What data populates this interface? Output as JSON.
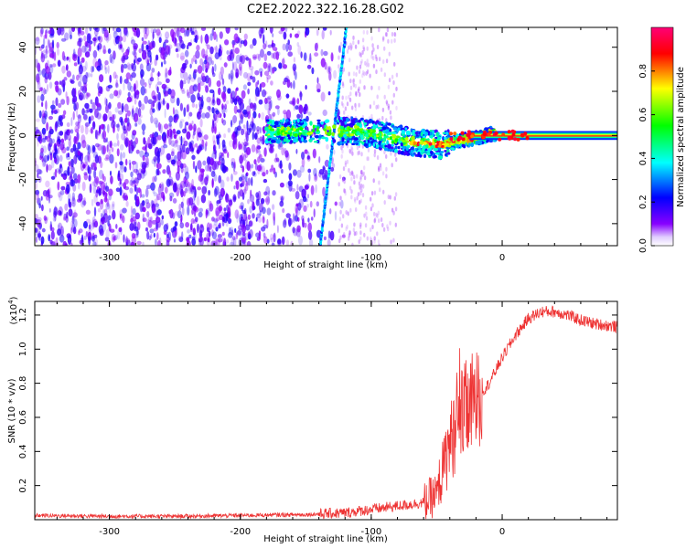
{
  "title": "C2E2.2022.322.16.28.G02",
  "colors": {
    "snr_line": "#ee3333",
    "frame": "#000000"
  },
  "chart_data": [
    {
      "type": "heatmap",
      "xlabel": "Height of straight line (km)",
      "ylabel": "Frequency (Hz)",
      "xlim": [
        -357,
        88
      ],
      "ylim": [
        -50,
        49
      ],
      "x_ticks": [
        -300,
        -200,
        -100,
        0
      ],
      "y_ticks": [
        -40,
        -20,
        0,
        20,
        40
      ],
      "colorbar": {
        "label": "Normalized spectral amplitude",
        "range": [
          0,
          1
        ],
        "ticks": [
          0.0,
          0.2,
          0.4,
          0.6,
          0.8
        ],
        "colormap": [
          "#ffffff",
          "#8800ff",
          "#0000ff",
          "#00ffff",
          "#00ff00",
          "#ffff00",
          "#ff0000",
          "#ff0077"
        ]
      },
      "features": [
        {
          "name": "broadband noise",
          "x_range": [
            -357,
            -120
          ],
          "freq_range": [
            -50,
            49
          ],
          "amplitude": 0.1
        },
        {
          "name": "dispersed line",
          "x_range": [
            -139,
            -119
          ],
          "freq_range": [
            -50,
            49
          ],
          "amplitude": 0.3
        },
        {
          "name": "signal band",
          "x_range": [
            -180,
            88
          ],
          "center_freq": 0,
          "amplitude": 0.85
        }
      ]
    },
    {
      "type": "line",
      "xlabel": "Height of straight line (km)",
      "ylabel": "SNR (10 * v/v)",
      "y_multiplier": "(x10",
      "y_multiplier_exp": "4",
      "y_multiplier_close": ")",
      "xlim": [
        -357,
        88
      ],
      "ylim": [
        0,
        1.28
      ],
      "x_ticks": [
        -300,
        -200,
        -100,
        0
      ],
      "y_ticks": [
        0.2,
        0.4,
        0.6,
        0.8,
        1.0,
        1.2
      ],
      "y_tick_labels": [
        "0.2",
        "0.4",
        "0.6",
        "0.8",
        "1.0",
        "1.2"
      ],
      "series": [
        {
          "x": [
            -357,
            -300,
            -250,
            -200,
            -150,
            -120,
            -100,
            -80,
            -60,
            -50,
            -45,
            -40,
            -35,
            -30,
            -25,
            -20,
            -10,
            0,
            10,
            20,
            30,
            40,
            50,
            60,
            70,
            88
          ],
          "y": [
            0.025,
            0.02,
            0.02,
            0.025,
            0.03,
            0.04,
            0.06,
            0.08,
            0.1,
            0.15,
            0.3,
            0.45,
            0.55,
            0.62,
            0.65,
            0.7,
            0.8,
            0.95,
            1.08,
            1.18,
            1.22,
            1.22,
            1.2,
            1.17,
            1.15,
            1.13
          ]
        }
      ]
    }
  ]
}
